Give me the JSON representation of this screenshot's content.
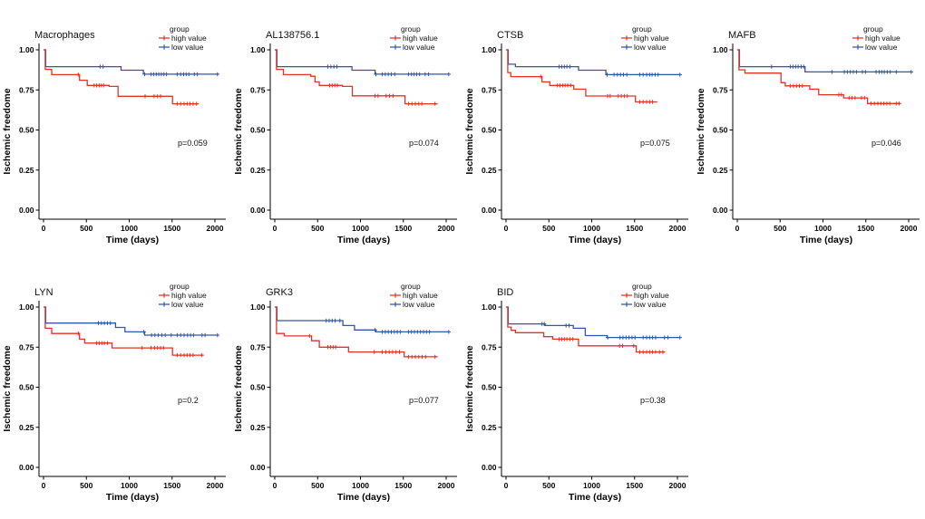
{
  "figure": {
    "background": "#ffffff"
  },
  "chart_data": {
    "type": "line",
    "subtype": "kaplan-meier-step",
    "xlabel": "Time (days)",
    "ylabel": "Ischemic freedome",
    "x_ticks": [
      0,
      500,
      1000,
      1500,
      2000
    ],
    "x_tick_labels": [
      "0",
      "500",
      "1000",
      "1500",
      "2000"
    ],
    "y_ticks": [
      0.0,
      0.25,
      0.5,
      0.75,
      1.0
    ],
    "y_tick_labels": [
      "0.00",
      "0.25",
      "0.50",
      "0.75",
      "1.00"
    ],
    "xlim": [
      0,
      2100
    ],
    "ylim": [
      0,
      1
    ],
    "grid": "off",
    "legend": {
      "title": "group",
      "position": "top-right",
      "entries": [
        {
          "key": "high",
          "label": "high value",
          "color": "#e23327"
        },
        {
          "key": "low",
          "label": "low value",
          "color": "#3356a6"
        }
      ]
    },
    "panels": [
      {
        "title": "Macrophages",
        "p_label": "p=0.059",
        "series": {
          "high": {
            "steps": [
              [
                0,
                1
              ],
              [
                20,
                0.878
              ],
              [
                95,
                0.845
              ],
              [
                420,
                0.81
              ],
              [
                510,
                0.778
              ],
              [
                765,
                0.772
              ],
              [
                870,
                0.71
              ],
              [
                1505,
                0.663
              ]
            ],
            "end": 1810,
            "censors": [
              405,
              590,
              620,
              650,
              675,
              700,
              1185,
              1290,
              1330,
              1365,
              1560,
              1600,
              1640,
              1675,
              1710,
              1745,
              1785
            ]
          },
          "low": {
            "steps": [
              [
                0,
                1
              ],
              [
                25,
                0.895
              ],
              [
                905,
                0.873
              ],
              [
                1165,
                0.848
              ]
            ],
            "end": 2030,
            "censors": [
              660,
              695,
              1180,
              1255,
              1285,
              1315,
              1345,
              1375,
              1405,
              1435,
              1560,
              1600,
              1635,
              1665,
              1695,
              1760,
              1795,
              2030
            ]
          }
        }
      },
      {
        "title": "AL138756.1",
        "p_label": "p=0.074",
        "series": {
          "high": {
            "steps": [
              [
                0,
                1
              ],
              [
                20,
                0.878
              ],
              [
                100,
                0.845
              ],
              [
                420,
                0.835
              ],
              [
                470,
                0.8
              ],
              [
                520,
                0.778
              ],
              [
                790,
                0.772
              ],
              [
                905,
                0.713
              ],
              [
                1520,
                0.663
              ]
            ],
            "end": 1900,
            "censors": [
              640,
              670,
              700,
              730,
              1170,
              1205,
              1300,
              1340,
              1380,
              1560,
              1600,
              1640,
              1680,
              1715,
              1870
            ]
          },
          "low": {
            "steps": [
              [
                0,
                1
              ],
              [
                25,
                0.895
              ],
              [
                900,
                0.873
              ],
              [
                1170,
                0.848
              ]
            ],
            "end": 2030,
            "censors": [
              620,
              655,
              690,
              725,
              1180,
              1255,
              1290,
              1325,
              1360,
              1400,
              1560,
              1595,
              1625,
              1655,
              1690,
              1755,
              1795,
              2030
            ]
          }
        }
      },
      {
        "title": "CTSB",
        "p_label": "p=0.075",
        "series": {
          "high": {
            "steps": [
              [
                0,
                1
              ],
              [
                20,
                0.858
              ],
              [
                55,
                0.833
              ],
              [
                420,
                0.8
              ],
              [
                510,
                0.778
              ],
              [
                790,
                0.755
              ],
              [
                930,
                0.712
              ],
              [
                1510,
                0.675
              ]
            ],
            "end": 1765,
            "censors": [
              405,
              600,
              630,
              660,
              690,
              720,
              755,
              1185,
              1215,
              1310,
              1345,
              1380,
              1415,
              1560,
              1600,
              1640,
              1675,
              1710
            ]
          },
          "low": {
            "steps": [
              [
                0,
                1
              ],
              [
                25,
                0.91
              ],
              [
                110,
                0.895
              ],
              [
                845,
                0.873
              ],
              [
                1165,
                0.845
              ]
            ],
            "end": 2030,
            "censors": [
              620,
              650,
              680,
              710,
              745,
              1180,
              1260,
              1300,
              1335,
              1370,
              1410,
              1560,
              1600,
              1640,
              1675,
              1705,
              1740,
              1775,
              2030
            ]
          }
        }
      },
      {
        "title": "MAFB",
        "p_label": "p=0.046",
        "series": {
          "high": {
            "steps": [
              [
                0,
                1
              ],
              [
                20,
                0.875
              ],
              [
                90,
                0.855
              ],
              [
                510,
                0.795
              ],
              [
                560,
                0.775
              ],
              [
                845,
                0.755
              ],
              [
                950,
                0.72
              ],
              [
                1240,
                0.7
              ],
              [
                1520,
                0.665
              ]
            ],
            "end": 1900,
            "censors": [
              620,
              655,
              690,
              725,
              760,
              1185,
              1215,
              1305,
              1340,
              1375,
              1450,
              1485,
              1560,
              1600,
              1640,
              1675,
              1710,
              1745,
              1780,
              1855,
              1890
            ]
          },
          "low": {
            "steps": [
              [
                0,
                1
              ],
              [
                25,
                0.895
              ],
              [
                790,
                0.862
              ]
            ],
            "end": 2030,
            "censors": [
              400,
              620,
              650,
              680,
              710,
              745,
              775,
              1105,
              1250,
              1285,
              1320,
              1355,
              1390,
              1460,
              1495,
              1620,
              1655,
              1685,
              1715,
              1750,
              1785,
              1855,
              2030
            ]
          }
        }
      },
      {
        "title": "LYN",
        "p_label": "p=0.2",
        "series": {
          "high": {
            "steps": [
              [
                0,
                1
              ],
              [
                20,
                0.868
              ],
              [
                95,
                0.835
              ],
              [
                420,
                0.8
              ],
              [
                480,
                0.775
              ],
              [
                800,
                0.745
              ],
              [
                1505,
                0.7
              ]
            ],
            "end": 1870,
            "censors": [
              405,
              620,
              650,
              680,
              710,
              745,
              1150,
              1255,
              1295,
              1330,
              1365,
              1400,
              1560,
              1600,
              1640,
              1675,
              1710,
              1745,
              1845
            ]
          },
          "low": {
            "steps": [
              [
                0,
                1
              ],
              [
                25,
                0.9
              ],
              [
                840,
                0.873
              ],
              [
                950,
                0.845
              ],
              [
                1180,
                0.825
              ]
            ],
            "end": 2030,
            "censors": [
              640,
              675,
              710,
              745,
              780,
              1170,
              1260,
              1300,
              1340,
              1380,
              1420,
              1490,
              1560,
              1600,
              1640,
              1680,
              1715,
              1750,
              1850,
              1885,
              2030
            ]
          }
        }
      },
      {
        "title": "GRK3",
        "p_label": "p=0.077",
        "series": {
          "high": {
            "steps": [
              [
                0,
                1
              ],
              [
                20,
                0.835
              ],
              [
                110,
                0.82
              ],
              [
                430,
                0.79
              ],
              [
                520,
                0.75
              ],
              [
                860,
                0.72
              ],
              [
                1510,
                0.69
              ]
            ],
            "end": 1900,
            "censors": [
              405,
              620,
              650,
              680,
              710,
              1160,
              1255,
              1295,
              1335,
              1375,
              1415,
              1455,
              1560,
              1600,
              1640,
              1680,
              1720,
              1760,
              1870
            ]
          },
          "low": {
            "steps": [
              [
                0,
                1
              ],
              [
                25,
                0.915
              ],
              [
                795,
                0.885
              ],
              [
                930,
                0.857
              ],
              [
                1180,
                0.845
              ]
            ],
            "end": 2030,
            "censors": [
              600,
              635,
              670,
              705,
              760,
              1170,
              1255,
              1290,
              1325,
              1360,
              1395,
              1430,
              1465,
              1560,
              1595,
              1630,
              1665,
              1700,
              1735,
              1770,
              1805,
              2030
            ]
          }
        }
      },
      {
        "title": "BID",
        "p_label": "p=0.38",
        "series": {
          "high": {
            "steps": [
              [
                0,
                1
              ],
              [
                20,
                0.875
              ],
              [
                60,
                0.855
              ],
              [
                110,
                0.84
              ],
              [
                440,
                0.815
              ],
              [
                545,
                0.8
              ],
              [
                845,
                0.758
              ],
              [
                1520,
                0.72
              ]
            ],
            "end": 1855,
            "censors": [
              620,
              650,
              680,
              710,
              745,
              780,
              1325,
              1360,
              1490,
              1560,
              1600,
              1640,
              1675,
              1710,
              1745,
              1790,
              1830
            ]
          },
          "low": {
            "steps": [
              [
                0,
                1
              ],
              [
                25,
                0.895
              ],
              [
                455,
                0.885
              ],
              [
                785,
                0.868
              ],
              [
                925,
                0.822
              ],
              [
                1180,
                0.81
              ]
            ],
            "end": 2030,
            "censors": [
              420,
              445,
              700,
              735,
              1185,
              1330,
              1365,
              1400,
              1435,
              1470,
              1505,
              1600,
              1640,
              1675,
              1710,
              1745,
              1850,
              1890,
              2030
            ]
          }
        }
      }
    ]
  }
}
